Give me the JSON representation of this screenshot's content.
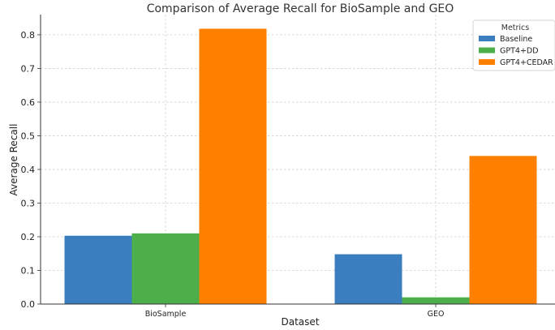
{
  "chart_data": {
    "type": "bar",
    "title": "Comparison of Average Recall for BioSample and GEO",
    "xlabel": "Dataset",
    "ylabel": "Average Recall",
    "categories": [
      "BioSample",
      "GEO"
    ],
    "series": [
      {
        "name": "Baseline",
        "values": [
          0.203,
          0.148
        ],
        "color": "#3a7ebf"
      },
      {
        "name": "GPT4+DD",
        "values": [
          0.21,
          0.02
        ],
        "color": "#4daf4a"
      },
      {
        "name": "GPT4+CEDAR",
        "values": [
          0.818,
          0.44
        ],
        "color": "#ff7f00"
      }
    ],
    "ylim": [
      0,
      0.86
    ],
    "yticks": [
      "0.0",
      "0.1",
      "0.2",
      "0.3",
      "0.4",
      "0.5",
      "0.6",
      "0.7",
      "0.8"
    ],
    "grid": true,
    "legend": {
      "title": "Metrics",
      "position": "top-right"
    }
  }
}
